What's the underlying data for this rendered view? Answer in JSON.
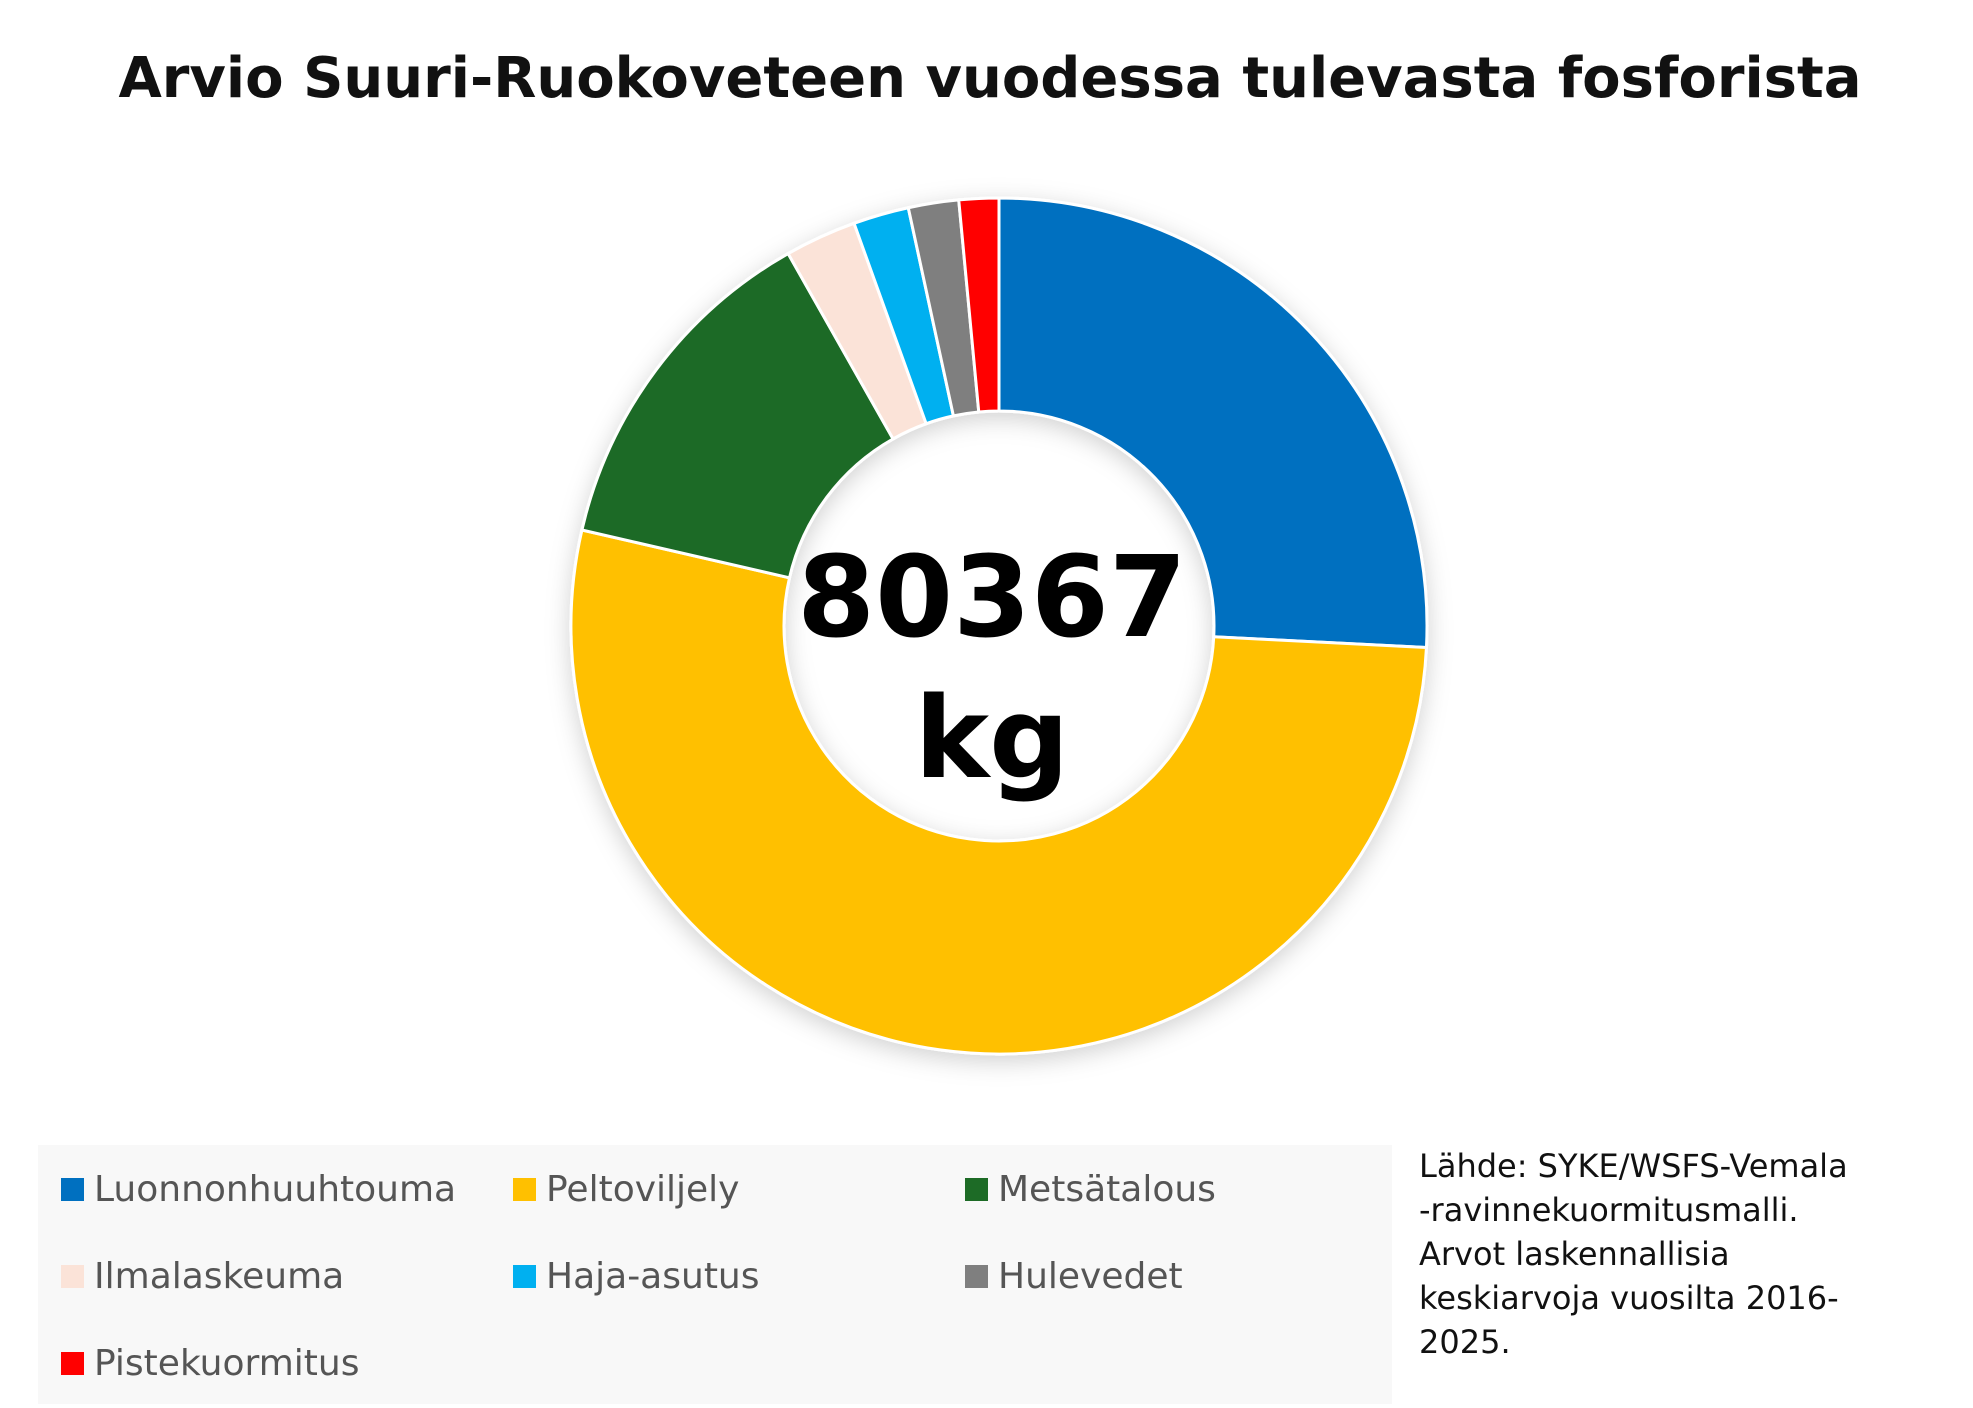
{
  "chart_data": {
    "type": "donut",
    "title": "Arvio Suuri-Ruokoveteen vuodessa tulevasta fosforista",
    "center_value": 80367,
    "center_unit": "kg",
    "series": [
      {
        "name": "Luonnonhuuhtouma",
        "color": "#0070c0",
        "value": 25.8
      },
      {
        "name": "Peltoviljely",
        "color": "#ffc000",
        "value": 52.8
      },
      {
        "name": "Metsätalous",
        "color": "#1d6b26",
        "value": 13.2
      },
      {
        "name": "Ilmalaskeuma",
        "color": "#fbe3d8",
        "value": 2.7
      },
      {
        "name": "Haja-asutus",
        "color": "#00b0f0",
        "value": 2.1
      },
      {
        "name": "Hulevedet",
        "color": "#7f7f7f",
        "value": 1.9
      },
      {
        "name": "Pistekuormitus",
        "color": "#ff0000",
        "value": 1.5
      }
    ],
    "note": [
      "Lähde: SYKE/WSFS-Vemala",
      "-ravinnekuormitusmalli.",
      "Arvot laskennallisia",
      "keskiarvoja vuosilta 2016-",
      "2025."
    ]
  }
}
